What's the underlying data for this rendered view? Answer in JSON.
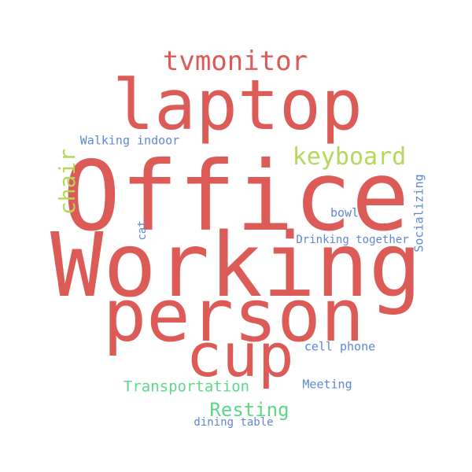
{
  "colors": {
    "red": "#dc5b57",
    "lime": "#b6d75a",
    "green": "#5cd88a",
    "blue": "#5f86d4",
    "background": "#ffffff"
  },
  "words": {
    "office": {
      "text": "Office",
      "color": "#dc5b57"
    },
    "working": {
      "text": "Working",
      "color": "#dc5b57"
    },
    "person": {
      "text": "person",
      "color": "#dc5b57"
    },
    "laptop": {
      "text": "laptop",
      "color": "#dc5b57"
    },
    "cup": {
      "text": "cup",
      "color": "#dc5b57"
    },
    "tvmonitor": {
      "text": "tvmonitor",
      "color": "#dc5b57"
    },
    "keyboard": {
      "text": "keyboard",
      "color": "#b6d75a"
    },
    "chair": {
      "text": "chair",
      "color": "#b6d75a"
    },
    "transportation": {
      "text": "Transportation",
      "color": "#5cd88a"
    },
    "resting": {
      "text": "Resting",
      "color": "#5cd88a"
    },
    "walking_indoor": {
      "text": "Walking indoor",
      "color": "#5f86d4"
    },
    "socializing": {
      "text": "Socializing",
      "color": "#5f86d4"
    },
    "bowl": {
      "text": "bowl",
      "color": "#5f86d4"
    },
    "cat": {
      "text": "cat",
      "color": "#5f86d4"
    },
    "drinking_together": {
      "text": "Drinking together",
      "color": "#5f86d4"
    },
    "cell_phone": {
      "text": "cell phone",
      "color": "#5f86d4"
    },
    "meeting": {
      "text": "Meeting",
      "color": "#5f86d4"
    },
    "dining_table": {
      "text": "dining table",
      "color": "#5f86d4"
    }
  }
}
